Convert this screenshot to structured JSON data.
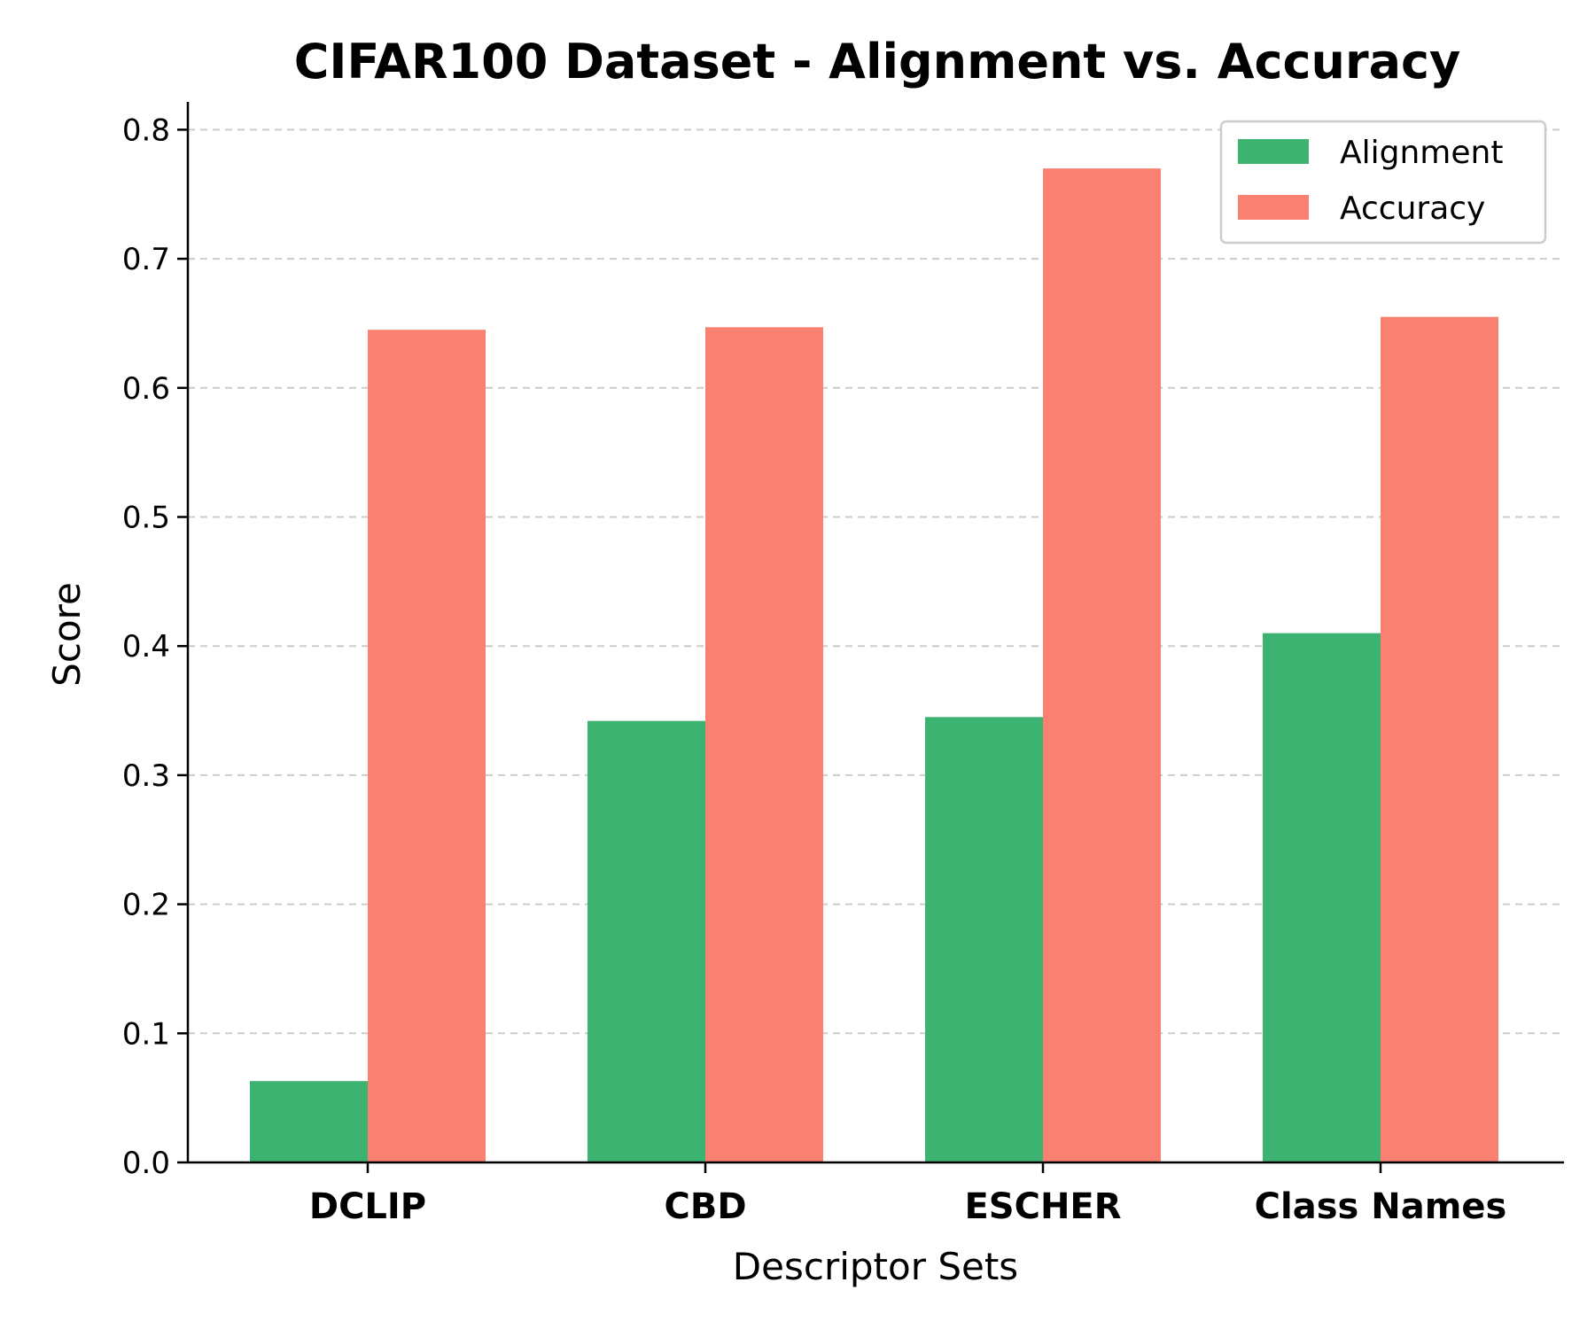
{
  "chart_data": {
    "type": "bar",
    "title": "CIFAR100 Dataset - Alignment vs. Accuracy",
    "xlabel": "Descriptor Sets",
    "ylabel": "Score",
    "categories": [
      "DCLIP",
      "CBD",
      "ESCHER",
      "Class Names"
    ],
    "series": [
      {
        "name": "Alignment",
        "color": "#3cb371",
        "values": [
          0.063,
          0.342,
          0.345,
          0.41
        ]
      },
      {
        "name": "Accuracy",
        "color": "#fa8072",
        "values": [
          0.645,
          0.647,
          0.77,
          0.655
        ]
      }
    ],
    "ylim": [
      0,
      0.82
    ],
    "yticks": [
      "0.0",
      "0.1",
      "0.2",
      "0.3",
      "0.4",
      "0.5",
      "0.6",
      "0.7",
      "0.8"
    ],
    "grid": "horizontal dashed",
    "legend_position": "top-right"
  }
}
